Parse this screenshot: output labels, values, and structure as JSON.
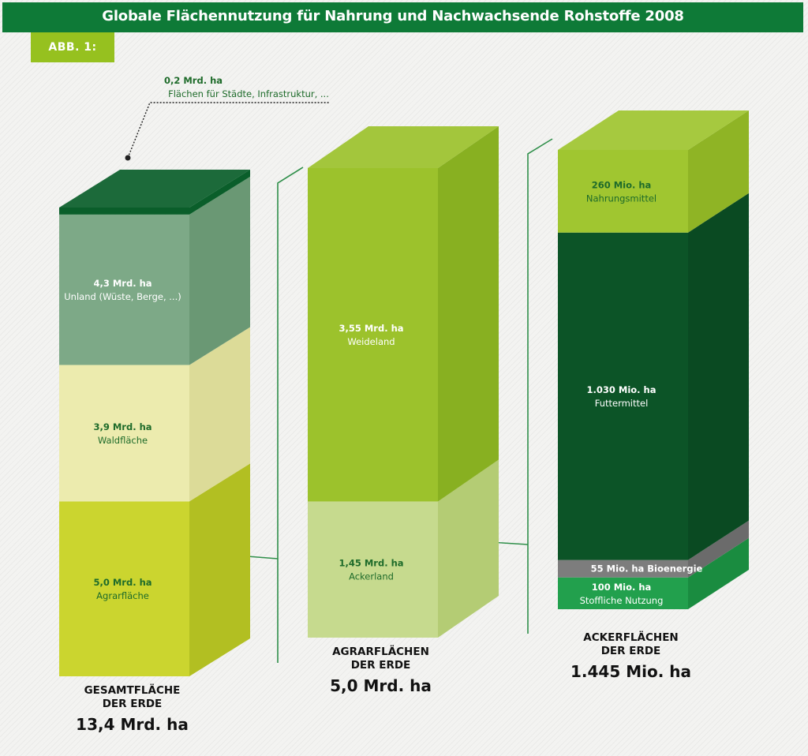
{
  "header": {
    "title": "Globale Flächennutzung für Nahrung und Nachwachsende Rohstoffe 2008"
  },
  "figure_label": "ABB. 1:",
  "chart_data": {
    "type": "stacked-bar-3d",
    "title": "Globale Flächennutzung für Nahrung und Nachwachsende Rohstoffe 2008",
    "columns": [
      {
        "caption": [
          "GESAMTFLÄCHE",
          "DER ERDE"
        ],
        "total_label": "13,4 Mrd. ha",
        "total": 13.4,
        "unit": "Mrd. ha",
        "segments": [
          {
            "value": 5.0,
            "value_label": "5,0 Mrd. ha",
            "name": "Agrarfläche",
            "front": "#cbd52f",
            "side": "#b2bf22",
            "text": "#1e6b2a"
          },
          {
            "value": 3.9,
            "value_label": "3,9 Mrd. ha",
            "name": "Waldfläche",
            "front": "#ecebae",
            "side": "#dcdb98",
            "text": "#1e6b2a"
          },
          {
            "value": 4.3,
            "value_label": "4,3 Mrd. ha",
            "name": "Unland (Wüste, Berge, ...)",
            "front": "#7da987",
            "side": "#6a9874",
            "text": "#ffffff"
          },
          {
            "value": 0.2,
            "value_label": "0,2 Mrd. ha",
            "name": "Flächen für Städte, Infrastruktur, ...",
            "front": "#0a5e2a",
            "side": "#0a5e2a",
            "text": "#1e6b2a",
            "top_callout": true
          }
        ]
      },
      {
        "caption": [
          "AGRARFLÄCHEN",
          "DER ERDE"
        ],
        "total_label": "5,0 Mrd. ha",
        "total": 5.0,
        "unit": "Mrd. ha",
        "segments": [
          {
            "value": 1.45,
            "value_label": "1,45 Mrd. ha",
            "name": "Ackerland",
            "front": "#c6da8e",
            "side": "#b4cc74",
            "text": "#1e6b2a"
          },
          {
            "value": 3.55,
            "value_label": "3,55 Mrd. ha",
            "name": "Weideland",
            "front": "#9cc22c",
            "side": "#88b021",
            "text": "#ffffff"
          }
        ]
      },
      {
        "caption": [
          "ACKERFLÄCHEN",
          "DER ERDE"
        ],
        "total_label": "1.445 Mio. ha",
        "total": 1445,
        "unit": "Mio. ha",
        "segments": [
          {
            "value": 100,
            "value_label": "100 Mio. ha",
            "name": "Stoffliche Nutzung",
            "front": "#22a04d",
            "side": "#1a8c40",
            "text": "#ffffff"
          },
          {
            "value": 55,
            "value_label": "55 Mio. ha",
            "name": "Bioenergie",
            "front": "#7d7d7d",
            "side": "#6b6b6b",
            "text": "#ffffff",
            "inline": true
          },
          {
            "value": 1030,
            "value_label": "1.030 Mio. ha",
            "name": "Futtermittel",
            "front": "#0c5427",
            "side": "#0a4a22",
            "text": "#ffffff"
          },
          {
            "value": 260,
            "value_label": "260 Mio. ha",
            "name": "Nahrungsmittel",
            "front": "#a0c630",
            "side": "#8fb425",
            "text": "#1e6b2a"
          }
        ]
      }
    ]
  }
}
